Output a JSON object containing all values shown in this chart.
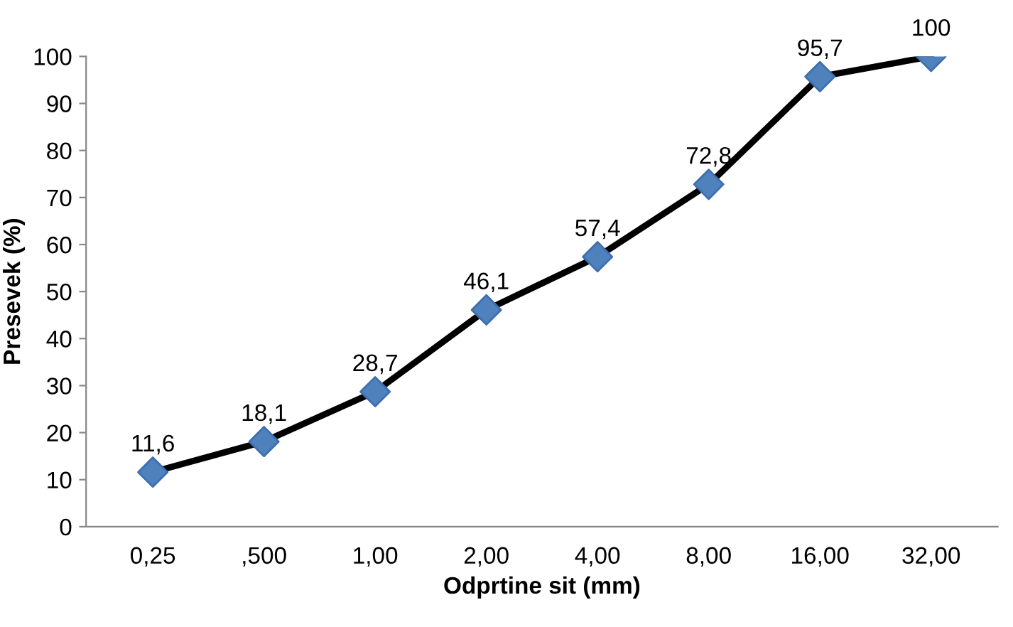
{
  "chart_data": {
    "type": "line",
    "xlabel": "Odprtine sit (mm)",
    "ylabel": "Presevek (%)",
    "categories": [
      "0,25",
      ",500",
      "1,00",
      "2,00",
      "4,00",
      "8,00",
      "16,00",
      "32,00"
    ],
    "series": [
      {
        "color": "#000000",
        "values": [
          11.6,
          18.1,
          28.7,
          46.1,
          57.4,
          72.8,
          95.7,
          100
        ],
        "value_labels": [
          "11,6",
          "18,1",
          "28,7",
          "46,1",
          "57,4",
          "72,8",
          "95,7",
          "100"
        ]
      }
    ],
    "marker": "diamond",
    "line_style": "solid",
    "ylim": [
      0,
      100
    ],
    "yticks": [
      0,
      10,
      20,
      30,
      40,
      50,
      60,
      70,
      80,
      90,
      100
    ],
    "grid": false,
    "legend": false
  }
}
